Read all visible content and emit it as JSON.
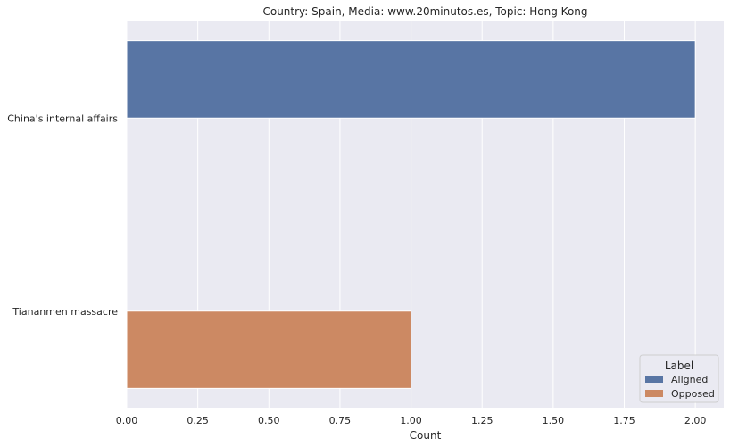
{
  "chart_data": {
    "type": "bar",
    "orientation": "horizontal",
    "title": "Country: Spain, Media: www.20minutos.es, Topic: Hong Kong",
    "xlabel": "Count",
    "ylabel": "",
    "categories": [
      "China's internal affairs",
      "Tiananmen massacre"
    ],
    "series": [
      {
        "name": "Aligned",
        "color": "#5875a4",
        "values": [
          2,
          0
        ]
      },
      {
        "name": "Opposed",
        "color": "#cc8963",
        "values": [
          0,
          1
        ]
      }
    ],
    "xlim": [
      0,
      2.1
    ],
    "xticks": [
      "0.00",
      "0.25",
      "0.50",
      "0.75",
      "1.00",
      "1.25",
      "1.50",
      "1.75",
      "2.00"
    ],
    "grid": true,
    "legend": {
      "title": "Label",
      "position": "lower-right"
    },
    "colors": {
      "plot_background": "#eaeaf2",
      "grid": "#ffffff"
    }
  }
}
